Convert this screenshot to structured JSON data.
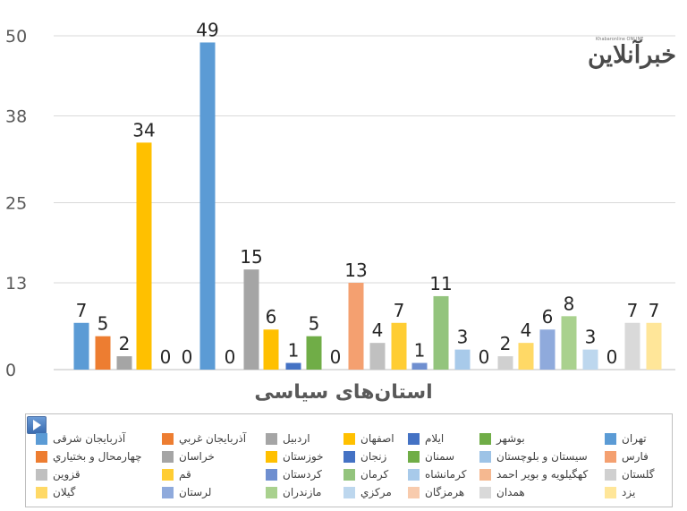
{
  "chart_data": {
    "type": "bar",
    "title": "",
    "xlabel": "استان‌های سیاسی",
    "ylabel": "",
    "ylim": [
      0,
      50
    ],
    "yticks": [
      0,
      13,
      25,
      38,
      50
    ],
    "grid": true,
    "legend_position": "bottom",
    "categories": [
      "آذربایجان شرقی",
      "آذربایجان غربي",
      "اردبيل",
      "اصفهان",
      "ايلام",
      "بوشهر",
      "تهران",
      "چهارمحال و بختياري",
      "خراسان",
      "خوزستان",
      "زنجان",
      "سمنان",
      "سيستان و بلوچستان",
      "فارس",
      "قزوين",
      "قم",
      "كردستان",
      "كرمان",
      "كرمانشاه",
      "كهگيلويه و بوير احمد",
      "گلستان",
      "گيلان",
      "لرستان",
      "مازندران",
      "مركزي",
      "هرمزگان",
      "همدان",
      "يزد"
    ],
    "values": [
      7,
      5,
      2,
      34,
      0,
      0,
      49,
      0,
      15,
      6,
      1,
      5,
      0,
      13,
      4,
      7,
      1,
      11,
      3,
      0,
      2,
      4,
      6,
      8,
      3,
      0,
      7,
      7
    ],
    "colors": [
      "#5b9bd5",
      "#ed7d31",
      "#a5a5a5",
      "#ffc000",
      "#4472c4",
      "#70ad47",
      "#5b9bd5",
      "#ed7d31",
      "#a5a5a5",
      "#ffc000",
      "#4472c4",
      "#70ad47",
      "#9dc3e6",
      "#f4a070",
      "#c0c0c0",
      "#ffcd33",
      "#6f8fd0",
      "#93c47d",
      "#a8caea",
      "#f5b890",
      "#d0d0d0",
      "#ffd966",
      "#8faadc",
      "#a9d18e",
      "#bdd7ee",
      "#f8cbad",
      "#d9d9d9",
      "#ffe699"
    ]
  },
  "logo": {
    "text": "خبرآنلاین",
    "tag": "Khabaronline ONLINE"
  }
}
